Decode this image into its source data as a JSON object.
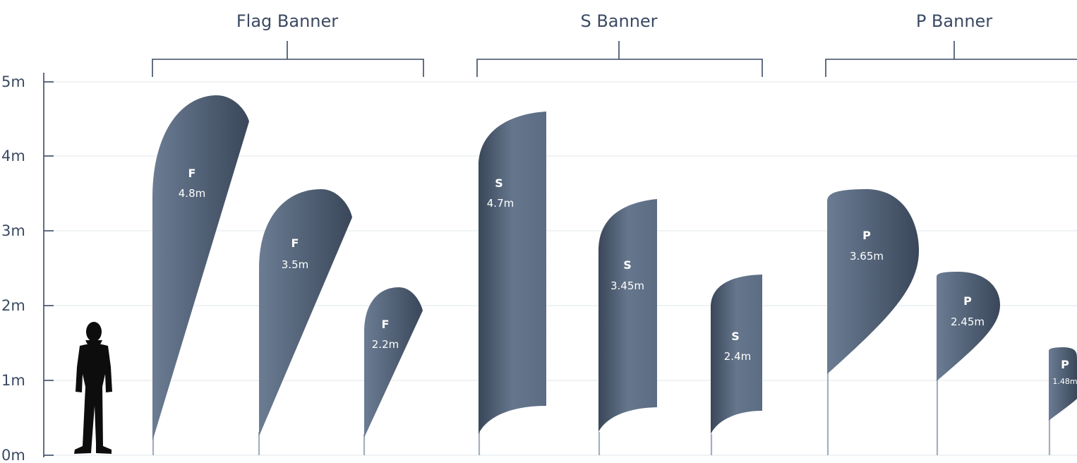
{
  "axis": {
    "unit": "m",
    "ticks": [
      "0m",
      "1m",
      "2m",
      "3m",
      "4m",
      "5m"
    ]
  },
  "groups": [
    {
      "title": "Flag Banner"
    },
    {
      "title": "S Banner"
    },
    {
      "title": "P Banner"
    }
  ],
  "flags": [
    {
      "letter": "F",
      "height_label": "4.8m"
    },
    {
      "letter": "F",
      "height_label": "3.5m"
    },
    {
      "letter": "F",
      "height_label": "2.2m"
    },
    {
      "letter": "S",
      "height_label": "4.7m"
    },
    {
      "letter": "S",
      "height_label": "3.45m"
    },
    {
      "letter": "S",
      "height_label": "2.4m"
    },
    {
      "letter": "P",
      "height_label": "3.65m"
    },
    {
      "letter": "P",
      "height_label": "2.45m"
    },
    {
      "letter": "P",
      "height_label": "1.48m"
    }
  ],
  "colors": {
    "flag_dark": "#2d3a4c",
    "flag_light": "#6b7c93",
    "text": "#3b4a63",
    "pole": "#a6afbb",
    "person": "#0d0d0d"
  },
  "icons": {
    "person": "human-silhouette-icon"
  }
}
